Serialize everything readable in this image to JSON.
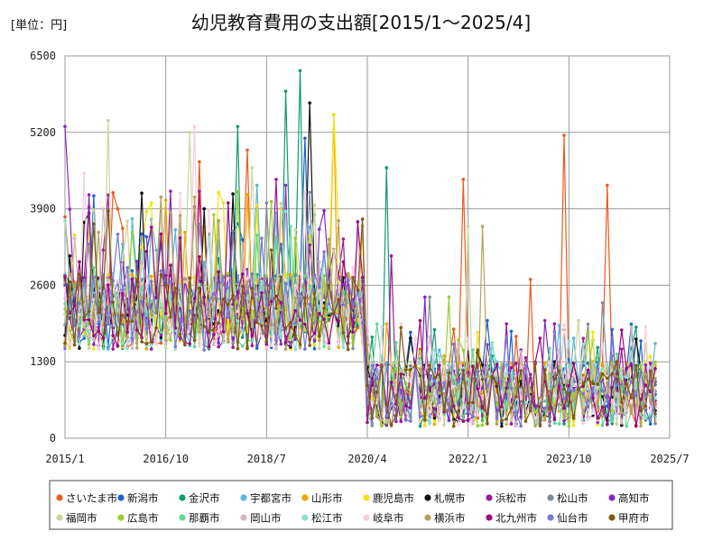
{
  "chart_data": {
    "type": "line",
    "title": "幼児教育費用の支出額[2015/1～2025/4]",
    "unit_label": "[単位：円]",
    "xlabel": "",
    "ylabel": "",
    "ylim": [
      0,
      6500
    ],
    "yticks": [
      0,
      1300,
      2600,
      3900,
      5200,
      6500
    ],
    "ytick_labels": [
      "0",
      "1300",
      "2600",
      "3900",
      "5200",
      "6500"
    ],
    "xlim": [
      0,
      126
    ],
    "xticks": [
      0,
      21,
      42,
      63,
      84,
      105,
      126
    ],
    "xtick_labels": [
      "2015/1",
      "2016/10",
      "2018/7",
      "2020/4",
      "2022/1",
      "2023/10",
      "2025/7"
    ],
    "grid": true,
    "legend_position": "bottom",
    "series": [
      {
        "name": "さいたま市",
        "color": "#ee5a1c",
        "peaks": [
          [
            11,
            3900
          ],
          [
            28,
            4700
          ],
          [
            38,
            4900
          ],
          [
            83,
            4400
          ],
          [
            97,
            2700
          ],
          [
            104,
            5150
          ],
          [
            113,
            4300
          ]
        ]
      },
      {
        "name": "新潟市",
        "color": "#1b63d9",
        "peaks": [
          [
            20,
            3300
          ],
          [
            35,
            3500
          ],
          [
            50,
            5100
          ],
          [
            72,
            1800
          ],
          [
            88,
            2000
          ]
        ]
      },
      {
        "name": "金沢市",
        "color": "#119a72",
        "peaks": [
          [
            36,
            5300
          ],
          [
            46,
            5900
          ],
          [
            49,
            6250
          ],
          [
            67,
            4600
          ],
          [
            89,
            1400
          ]
        ]
      },
      {
        "name": "宇都宮市",
        "color": "#55b8e3",
        "peaks": [
          [
            12,
            3300
          ],
          [
            40,
            4300
          ],
          [
            52,
            3800
          ],
          [
            78,
            1500
          ],
          [
            106,
            1700
          ]
        ]
      },
      {
        "name": "山形市",
        "color": "#f2a300",
        "peaks": [
          [
            25,
            3500
          ],
          [
            45,
            3900
          ],
          [
            56,
            5500
          ],
          [
            79,
            1400
          ],
          [
            110,
            1300
          ]
        ]
      },
      {
        "name": "鹿児島市",
        "color": "#f3e20f",
        "peaks": [
          [
            18,
            4000
          ],
          [
            33,
            4000
          ],
          [
            56,
            5500
          ],
          [
            86,
            1800
          ],
          [
            110,
            1800
          ]
        ]
      },
      {
        "name": "札幌市",
        "color": "#111111",
        "peaks": [
          [
            1,
            3100
          ],
          [
            29,
            3900
          ],
          [
            51,
            5700
          ],
          [
            72,
            1700
          ],
          [
            102,
            1300
          ]
        ]
      },
      {
        "name": "浜松市",
        "color": "#a3159a",
        "peaks": [
          [
            8,
            3200
          ],
          [
            28,
            4200
          ],
          [
            44,
            4400
          ],
          [
            68,
            3100
          ],
          [
            95,
            1500
          ]
        ]
      },
      {
        "name": "松山市",
        "color": "#7f8c95",
        "peaks": [
          [
            5,
            3300
          ],
          [
            20,
            4100
          ],
          [
            42,
            4000
          ],
          [
            76,
            2400
          ],
          [
            112,
            2300
          ]
        ]
      },
      {
        "name": "高知市",
        "color": "#8a25c4",
        "peaks": [
          [
            0,
            5300
          ],
          [
            22,
            4200
          ],
          [
            46,
            4300
          ],
          [
            75,
            2400
          ],
          [
            100,
            2000
          ]
        ]
      },
      {
        "name": "福岡市",
        "color": "#cbd69a",
        "peaks": [
          [
            9,
            5400
          ],
          [
            26,
            5200
          ],
          [
            39,
            4600
          ],
          [
            84,
            3600
          ],
          [
            107,
            2000
          ]
        ]
      },
      {
        "name": "広島市",
        "color": "#9acd32",
        "peaks": [
          [
            14,
            3500
          ],
          [
            31,
            3800
          ],
          [
            48,
            3400
          ],
          [
            80,
            2400
          ],
          [
            109,
            1800
          ]
        ]
      },
      {
        "name": "那覇市",
        "color": "#5edb8f",
        "peaks": [
          [
            6,
            2900
          ],
          [
            24,
            3100
          ],
          [
            47,
            3600
          ],
          [
            85,
            1500
          ],
          [
            111,
            1400
          ]
        ]
      },
      {
        "name": "岡山市",
        "color": "#d4b8c4",
        "peaks": [
          [
            16,
            3000
          ],
          [
            37,
            3300
          ],
          [
            53,
            3000
          ],
          [
            82,
            1600
          ],
          [
            103,
            1500
          ]
        ]
      },
      {
        "name": "松江市",
        "color": "#8ee0cf",
        "peaks": [
          [
            10,
            2800
          ],
          [
            30,
            3400
          ],
          [
            54,
            3100
          ],
          [
            77,
            1500
          ],
          [
            108,
            1600
          ]
        ]
      },
      {
        "name": "岐阜市",
        "color": "#f6cde3",
        "peaks": [
          [
            4,
            4500
          ],
          [
            27,
            5300
          ],
          [
            60,
            2900
          ],
          [
            73,
            1700
          ],
          [
            101,
            1300
          ]
        ]
      },
      {
        "name": "横浜市",
        "color": "#b5a35a",
        "peaks": [
          [
            7,
            3500
          ],
          [
            32,
            3700
          ],
          [
            57,
            3700
          ],
          [
            61,
            2100
          ],
          [
            87,
            3600
          ]
        ]
      },
      {
        "name": "北九州市",
        "color": "#9b0a82",
        "peaks": [
          [
            3,
            3000
          ],
          [
            34,
            4000
          ],
          [
            58,
            3000
          ],
          [
            74,
            2000
          ],
          [
            99,
            1700
          ]
        ]
      },
      {
        "name": "仙台市",
        "color": "#7777d9",
        "peaks": [
          [
            13,
            2900
          ],
          [
            41,
            3400
          ],
          [
            59,
            2700
          ],
          [
            81,
            1600
          ],
          [
            114,
            1700
          ]
        ]
      },
      {
        "name": "甲府市",
        "color": "#7f5a10",
        "peaks": [
          [
            15,
            2700
          ],
          [
            43,
            3200
          ],
          [
            55,
            2600
          ],
          [
            86,
            1500
          ],
          [
            115,
            1300
          ]
        ]
      }
    ]
  }
}
